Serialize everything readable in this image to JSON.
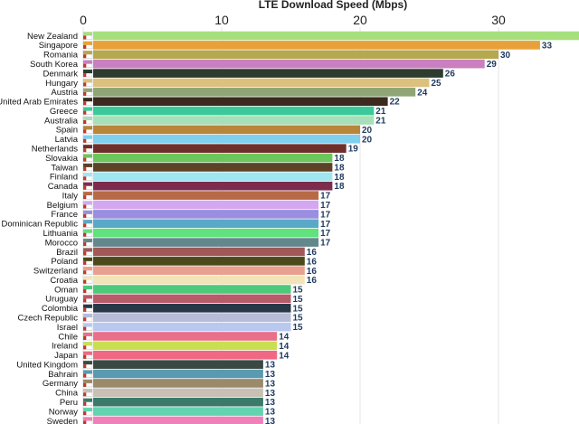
{
  "chart_data": {
    "type": "bar",
    "orientation": "horizontal",
    "title": "LTE Download Speed (Mbps)",
    "xlabel": "LTE Download Speed (Mbps)",
    "ylabel": "",
    "xlim": [
      0,
      35
    ],
    "ticks": [
      0,
      10,
      20,
      30
    ],
    "tick_labels": [
      "0",
      "10",
      "20",
      "30"
    ],
    "grid": true,
    "axis_position": "top",
    "categories": [
      "New Zealand",
      "Singapore",
      "Romania",
      "South Korea",
      "Denmark",
      "Hungary",
      "Austria",
      "United Arab Emirates",
      "Greece",
      "Australia",
      "Spain",
      "Latvia",
      "Netherlands",
      "Slovakia",
      "Taiwan",
      "Finland",
      "Canada",
      "Italy",
      "Belgium",
      "France",
      "Dominican Republic",
      "Lithuania",
      "Morocco",
      "Brazil",
      "Poland",
      "Switzerland",
      "Croatia",
      "Oman",
      "Uruguay",
      "Colombia",
      "Czech Republic",
      "Israel",
      "Chile",
      "Ireland",
      "Japan",
      "United Kingdom",
      "Bahrain",
      "Germany",
      "China",
      "Peru",
      "Norway",
      "Sweden"
    ],
    "values": [
      36,
      33,
      30,
      29,
      26,
      25,
      24,
      22,
      21,
      21,
      20,
      20,
      19,
      18,
      18,
      18,
      18,
      17,
      17,
      17,
      17,
      17,
      17,
      16,
      16,
      16,
      16,
      15,
      15,
      15,
      15,
      15,
      14,
      14,
      14,
      13,
      13,
      13,
      13,
      13,
      13,
      13
    ],
    "value_labels": [
      "",
      "33",
      "30",
      "29",
      "26",
      "25",
      "24",
      "22",
      "21",
      "21",
      "20",
      "20",
      "19",
      "18",
      "18",
      "18",
      "18",
      "17",
      "17",
      "17",
      "17",
      "17",
      "17",
      "16",
      "16",
      "16",
      "16",
      "15",
      "15",
      "15",
      "15",
      "15",
      "14",
      "14",
      "14",
      "13",
      "13",
      "13",
      "13",
      "13",
      "13",
      "13"
    ],
    "bar_colors": [
      "#a6e07c",
      "#e8a13a",
      "#b5a84f",
      "#c97fc0",
      "#2e3b2f",
      "#dcc07e",
      "#8fa576",
      "#3d2a1e",
      "#3cc99a",
      "#a7dfb8",
      "#b8853a",
      "#7fd0ef",
      "#6e2e2a",
      "#6ac75a",
      "#5c4226",
      "#a0e6f0",
      "#7e2c4e",
      "#b86a46",
      "#d3a8f0",
      "#9a8ee0",
      "#5aa8c8",
      "#60e27c",
      "#62888e",
      "#a05858",
      "#4a4a1a",
      "#e8a090",
      "#f2e4b8",
      "#4ec97a",
      "#b85a6a",
      "#283848",
      "#b8bcd8",
      "#b8c8ef",
      "#e87088",
      "#c8e050",
      "#f06884",
      "#3a4a42",
      "#5a9ab0",
      "#9a8a6a",
      "#c8c0b4",
      "#3a7a6a",
      "#62d4b0",
      "#f080b8"
    ]
  }
}
